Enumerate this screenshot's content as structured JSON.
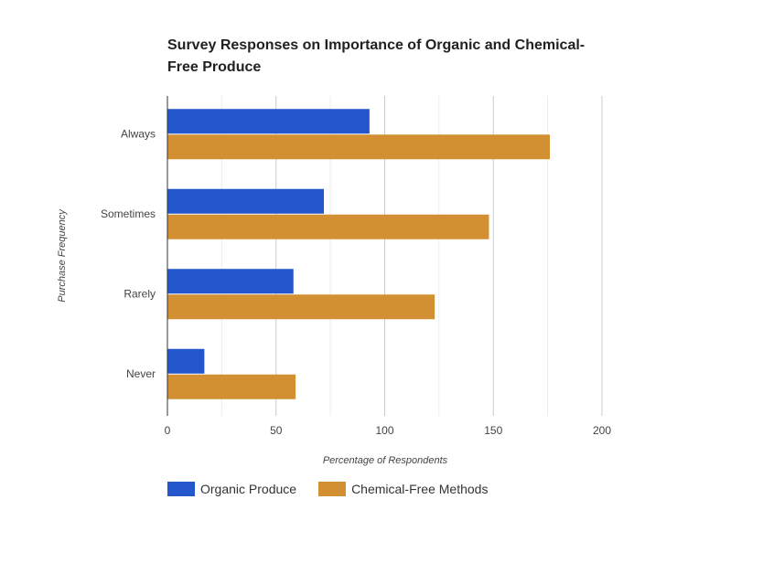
{
  "chart_data": {
    "type": "bar",
    "orientation": "horizontal",
    "title": "Survey Responses on Importance of Organic and Chemical-Free Produce",
    "xlabel": "Percentage of Respondents",
    "ylabel": "Purchase Frequency",
    "categories": [
      "Always",
      "Sometimes",
      "Rarely",
      "Never"
    ],
    "series": [
      {
        "name": "Organic Produce",
        "color": "#2456cc",
        "values": [
          93,
          72,
          58,
          17
        ]
      },
      {
        "name": "Chemical-Free Methods",
        "color": "#d29033",
        "values": [
          176,
          148,
          123,
          59
        ]
      }
    ],
    "xlim": [
      0,
      200
    ],
    "xticks": [
      "0",
      "50",
      "100",
      "150",
      "200"
    ],
    "grid": true,
    "legend_position": "bottom"
  }
}
